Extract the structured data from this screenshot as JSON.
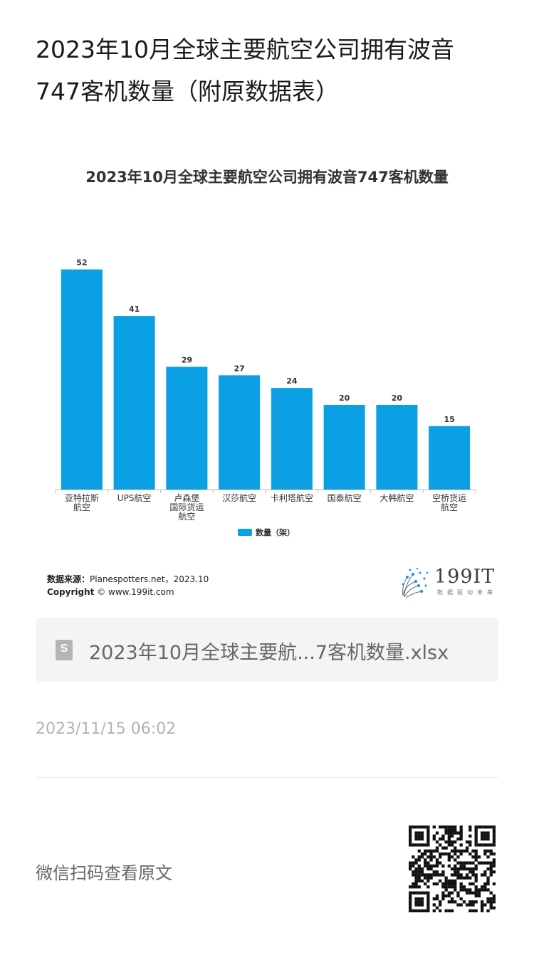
{
  "article": {
    "title": "2023年10月全球主要航空公司拥有波音747客机数量（附原数据表）"
  },
  "chart_data": {
    "type": "bar",
    "title": "2023年10月全球主要航空公司拥有波音747客机数量",
    "categories": [
      "亚特拉斯航空",
      "UPS航空",
      "卢森堡国际货运航空",
      "汉莎航空",
      "卡利塔航空",
      "国泰航空",
      "大韩航空",
      "空桥货运航空"
    ],
    "category_lines": [
      [
        "亚特拉斯",
        "航空"
      ],
      [
        "UPS航空"
      ],
      [
        "卢森堡",
        "国际货运",
        "航空"
      ],
      [
        "汉莎航空"
      ],
      [
        "卡利塔航空"
      ],
      [
        "国泰航空"
      ],
      [
        "大韩航空"
      ],
      [
        "空桥货运",
        "航空"
      ]
    ],
    "series": [
      {
        "name": "数量（架）",
        "values": [
          52,
          41,
          29,
          27,
          24,
          20,
          20,
          15
        ]
      }
    ],
    "ylim": [
      0,
      60
    ],
    "grid": false,
    "legend_position": "bottom",
    "bar_color": "#0ba0e4"
  },
  "chart_footer": {
    "source_label": "数据来源：",
    "source_value": "Planespotters.net，2023.10",
    "copyright_label": "Copyright",
    "copyright_value": "© www.199it.com",
    "logo_text": "199IT",
    "logo_tagline": "数据驱动未来"
  },
  "attachment": {
    "file_name": "2023年10月全球主要航...7客机数量.xlsx",
    "icon": "spreadsheet-file-icon"
  },
  "meta": {
    "timestamp": "2023/11/15 06:02"
  },
  "footer": {
    "qr_hint": "微信扫码查看原文",
    "qr_icon": "qr-code-icon"
  }
}
